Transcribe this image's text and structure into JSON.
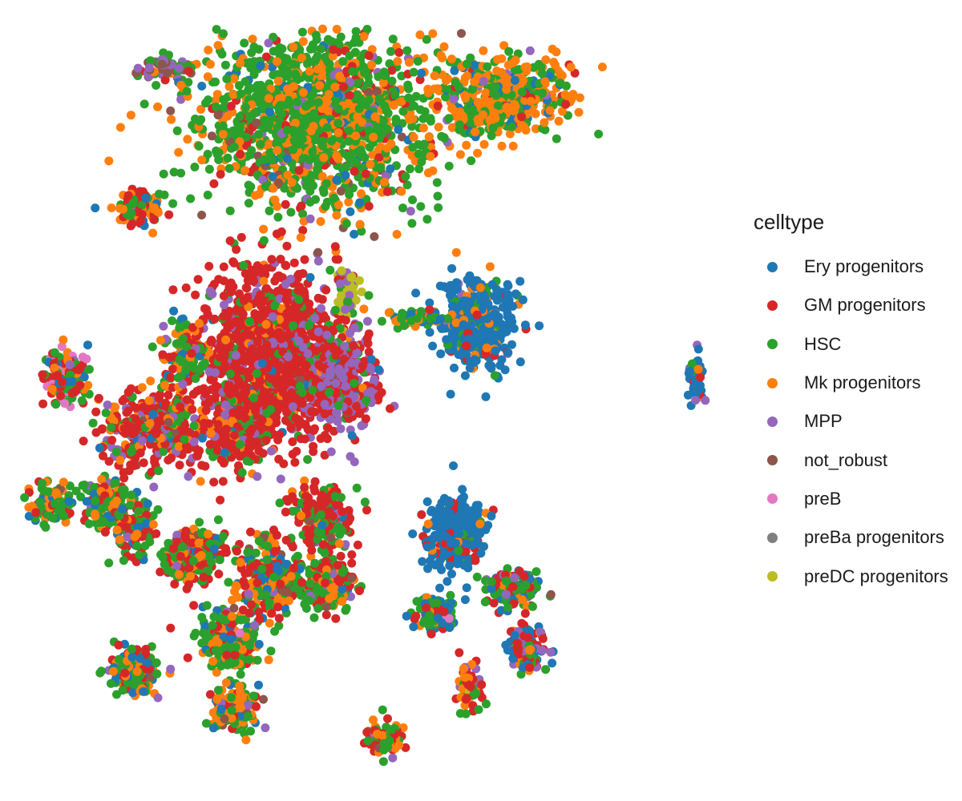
{
  "chart_data": {
    "type": "scatter",
    "title": "",
    "xlabel": "",
    "ylabel": "",
    "grid": false,
    "axes_visible": false,
    "legend": {
      "title": "celltype",
      "placement": "right"
    },
    "series": [
      {
        "name": "Ery progenitors",
        "color": "#1f77b4"
      },
      {
        "name": "GM progenitors",
        "color": "#d62728"
      },
      {
        "name": "HSC",
        "color": "#2ca02c"
      },
      {
        "name": "Mk progenitors",
        "color": "#ff7f0e"
      },
      {
        "name": "MPP",
        "color": "#9467bd"
      },
      {
        "name": "not_robust",
        "color": "#8c564b"
      },
      {
        "name": "preB",
        "color": "#e377c2"
      },
      {
        "name": "preBa progenitors",
        "color": "#7f7f7f"
      },
      {
        "name": "preDC progenitors",
        "color": "#bcbd22"
      }
    ],
    "clusters": [
      {
        "x": 4.0,
        "y": 8.6,
        "sx": 1.5,
        "sy": 1.1,
        "n": 1400,
        "mix": [
          0.06,
          0.06,
          0.55,
          0.28,
          0.02,
          0.03,
          0,
          0,
          0
        ]
      },
      {
        "x": 6.6,
        "y": 8.9,
        "sx": 0.9,
        "sy": 0.5,
        "n": 450,
        "mix": [
          0.08,
          0.04,
          0.34,
          0.52,
          0.02,
          0,
          0,
          0,
          0
        ]
      },
      {
        "x": 3.3,
        "y": 5.4,
        "sx": 0.9,
        "sy": 1.1,
        "n": 1300,
        "mix": [
          0.03,
          0.7,
          0.1,
          0.04,
          0.12,
          0.01,
          0,
          0,
          0
        ]
      },
      {
        "x": 1.7,
        "y": 4.4,
        "sx": 0.8,
        "sy": 0.5,
        "n": 400,
        "mix": [
          0.04,
          0.6,
          0.12,
          0.12,
          0.1,
          0.02,
          0,
          0,
          0
        ]
      },
      {
        "x": 4.3,
        "y": 5.0,
        "sx": 0.5,
        "sy": 0.6,
        "n": 350,
        "mix": [
          0.02,
          0.35,
          0.08,
          0.02,
          0.52,
          0.01,
          0,
          0,
          0
        ]
      },
      {
        "x": 4.4,
        "y": 6.2,
        "sx": 0.15,
        "sy": 0.5,
        "n": 50,
        "mix": [
          0,
          0.15,
          0.05,
          0,
          0.3,
          0,
          0,
          0,
          0.5
        ]
      },
      {
        "x": 6.2,
        "y": 5.8,
        "sx": 0.45,
        "sy": 0.5,
        "n": 450,
        "mix": [
          0.78,
          0.03,
          0.07,
          0.08,
          0.02,
          0,
          0,
          0,
          0
        ]
      },
      {
        "x": 5.4,
        "y": 5.9,
        "sx": 0.4,
        "sy": 0.1,
        "n": 80,
        "mix": [
          0.3,
          0.05,
          0.4,
          0.25,
          0,
          0,
          0,
          0,
          0
        ]
      },
      {
        "x": 9.3,
        "y": 5.1,
        "sx": 0.1,
        "sy": 0.3,
        "n": 60,
        "mix": [
          0.65,
          0.15,
          0.05,
          0.05,
          0.1,
          0,
          0,
          0,
          0
        ]
      },
      {
        "x": 5.9,
        "y": 3.0,
        "sx": 0.35,
        "sy": 0.4,
        "n": 350,
        "mix": [
          0.72,
          0.2,
          0.05,
          0.03,
          0,
          0,
          0,
          0,
          0
        ]
      },
      {
        "x": 5.6,
        "y": 1.9,
        "sx": 0.25,
        "sy": 0.2,
        "n": 110,
        "mix": [
          0.3,
          0.1,
          0.4,
          0.15,
          0,
          0,
          0.05,
          0,
          0
        ]
      },
      {
        "x": 2.2,
        "y": 2.7,
        "sx": 0.35,
        "sy": 0.35,
        "n": 250,
        "mix": [
          0.05,
          0.35,
          0.35,
          0.2,
          0.03,
          0.02,
          0,
          0,
          0
        ]
      },
      {
        "x": 1.0,
        "y": 3.4,
        "sx": 0.3,
        "sy": 0.3,
        "n": 150,
        "mix": [
          0.1,
          0.15,
          0.45,
          0.25,
          0.03,
          0.02,
          0,
          0,
          0
        ]
      },
      {
        "x": 0.4,
        "y": 5.1,
        "sx": 0.25,
        "sy": 0.3,
        "n": 160,
        "mix": [
          0.1,
          0.35,
          0.2,
          0.15,
          0.05,
          0,
          0.15,
          0,
          0
        ]
      },
      {
        "x": 0.2,
        "y": 3.4,
        "sx": 0.25,
        "sy": 0.25,
        "n": 120,
        "mix": [
          0.1,
          0.15,
          0.45,
          0.25,
          0.03,
          0.02,
          0,
          0,
          0
        ]
      },
      {
        "x": 2.1,
        "y": 5.4,
        "sx": 0.3,
        "sy": 0.4,
        "n": 110,
        "mix": [
          0.1,
          0.25,
          0.35,
          0.25,
          0.05,
          0,
          0,
          0,
          0
        ]
      },
      {
        "x": 2.9,
        "y": 4.4,
        "sx": 0.3,
        "sy": 0.4,
        "n": 200,
        "mix": [
          0.05,
          0.55,
          0.25,
          0.1,
          0.05,
          0,
          0,
          0,
          0
        ]
      },
      {
        "x": 1.4,
        "y": 3.0,
        "sx": 0.3,
        "sy": 0.3,
        "n": 100,
        "mix": [
          0.1,
          0.35,
          0.35,
          0.15,
          0.05,
          0,
          0,
          0,
          0
        ]
      },
      {
        "x": 3.3,
        "y": 2.4,
        "sx": 0.4,
        "sy": 0.5,
        "n": 260,
        "mix": [
          0.1,
          0.25,
          0.4,
          0.2,
          0.03,
          0.02,
          0,
          0,
          0
        ]
      },
      {
        "x": 2.7,
        "y": 1.5,
        "sx": 0.35,
        "sy": 0.35,
        "n": 230,
        "mix": [
          0.08,
          0.15,
          0.45,
          0.25,
          0.03,
          0.02,
          0.02,
          0,
          0
        ]
      },
      {
        "x": 4.0,
        "y": 3.2,
        "sx": 0.35,
        "sy": 0.4,
        "n": 200,
        "mix": [
          0.05,
          0.6,
          0.25,
          0.05,
          0.03,
          0.02,
          0,
          0,
          0
        ]
      },
      {
        "x": 4.1,
        "y": 2.3,
        "sx": 0.35,
        "sy": 0.3,
        "n": 220,
        "mix": [
          0.05,
          0.35,
          0.4,
          0.15,
          0.03,
          0.02,
          0,
          0,
          0
        ]
      },
      {
        "x": 1.4,
        "y": 1.1,
        "sx": 0.3,
        "sy": 0.3,
        "n": 160,
        "mix": [
          0.1,
          0.2,
          0.4,
          0.25,
          0.03,
          0.02,
          0,
          0,
          0
        ]
      },
      {
        "x": 2.8,
        "y": 0.6,
        "sx": 0.3,
        "sy": 0.3,
        "n": 150,
        "mix": [
          0.08,
          0.1,
          0.4,
          0.35,
          0.04,
          0.03,
          0,
          0,
          0
        ]
      },
      {
        "x": 4.9,
        "y": 0.2,
        "sx": 0.25,
        "sy": 0.2,
        "n": 110,
        "mix": [
          0.05,
          0.3,
          0.35,
          0.25,
          0.03,
          0.02,
          0,
          0,
          0
        ]
      },
      {
        "x": 6.7,
        "y": 2.2,
        "sx": 0.35,
        "sy": 0.25,
        "n": 130,
        "mix": [
          0.2,
          0.25,
          0.4,
          0.1,
          0.03,
          0.02,
          0,
          0,
          0
        ]
      },
      {
        "x": 6.9,
        "y": 1.4,
        "sx": 0.25,
        "sy": 0.25,
        "n": 120,
        "mix": [
          0.25,
          0.4,
          0.1,
          0.1,
          0.15,
          0,
          0,
          0,
          0
        ]
      },
      {
        "x": 6.1,
        "y": 0.9,
        "sx": 0.15,
        "sy": 0.3,
        "n": 70,
        "mix": [
          0.05,
          0.35,
          0.2,
          0.3,
          0.05,
          0,
          0,
          0,
          0.05
        ]
      },
      {
        "x": 1.8,
        "y": 9.3,
        "sx": 0.3,
        "sy": 0.15,
        "n": 70,
        "mix": [
          0.05,
          0.05,
          0.2,
          0.05,
          0.35,
          0.3,
          0,
          0,
          0
        ]
      },
      {
        "x": 1.5,
        "y": 7.4,
        "sx": 0.35,
        "sy": 0.2,
        "n": 100,
        "mix": [
          0.15,
          0.35,
          0.3,
          0.15,
          0.03,
          0.02,
          0,
          0,
          0
        ]
      }
    ]
  }
}
